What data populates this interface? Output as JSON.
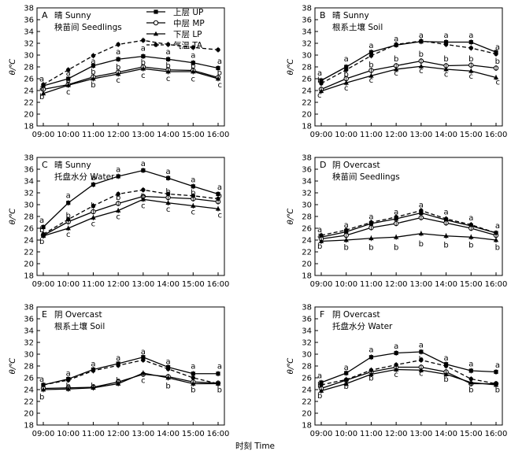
{
  "figure": {
    "ylabel": "θ/℃",
    "xlabel": "时刻 Time",
    "x_ticks": [
      "09:00",
      "10:00",
      "11:00",
      "12:00",
      "13:00",
      "14:00",
      "15:00",
      "16:00"
    ],
    "y_ticks": [
      18,
      20,
      22,
      24,
      26,
      28,
      30,
      32,
      34,
      36,
      38
    ],
    "legend": [
      {
        "key": "UP",
        "label": "上层 UP",
        "marker": "square-filled",
        "line": "solid"
      },
      {
        "key": "MP",
        "label": "中层 MP",
        "marker": "circle-open",
        "line": "solid"
      },
      {
        "key": "LP",
        "label": "下层 LP",
        "marker": "triangle-filled",
        "line": "solid"
      },
      {
        "key": "TA",
        "label": "气温 TA",
        "marker": "circle-filled",
        "line": "dashed"
      }
    ]
  },
  "chart_data": [
    {
      "type": "line",
      "panel": "A",
      "title_line1": "晴 Sunny",
      "title_line2": "秧苗间 Seedlings",
      "x": [
        "09:00",
        "10:00",
        "11:00",
        "12:00",
        "13:00",
        "14:00",
        "15:00",
        "16:00"
      ],
      "ylim": [
        18,
        38
      ],
      "series": [
        {
          "name": "上层 UP",
          "key": "UP",
          "values": [
            24.8,
            26.0,
            28.2,
            29.3,
            29.8,
            29.3,
            28.7,
            27.8
          ]
        },
        {
          "name": "中层 MP",
          "key": "MP",
          "values": [
            24.2,
            25.0,
            26.3,
            27.1,
            28.0,
            27.5,
            27.4,
            26.2
          ]
        },
        {
          "name": "下层 LP",
          "key": "LP",
          "values": [
            23.5,
            24.9,
            26.0,
            26.8,
            27.7,
            27.2,
            27.2,
            26.0
          ]
        },
        {
          "name": "气温 TA",
          "key": "TA",
          "values": [
            25.0,
            27.5,
            29.9,
            31.8,
            32.5,
            31.8,
            31.3,
            30.9
          ]
        }
      ],
      "annotations": [
        {
          "x": "09:00",
          "y": 26.0,
          "text": "a"
        },
        {
          "x": "09:00",
          "y": 24.5,
          "text": "a"
        },
        {
          "x": "09:00",
          "y": 23.0,
          "text": "b"
        },
        {
          "x": "10:00",
          "y": 27.0,
          "text": "a"
        },
        {
          "x": "10:00",
          "y": 25.8,
          "text": "b"
        },
        {
          "x": "10:00",
          "y": 23.8,
          "text": "c"
        },
        {
          "x": "11:00",
          "y": 29.0,
          "text": "a"
        },
        {
          "x": "11:00",
          "y": 27.2,
          "text": "b"
        },
        {
          "x": "11:00",
          "y": 25.0,
          "text": "b"
        },
        {
          "x": "12:00",
          "y": 30.6,
          "text": "a"
        },
        {
          "x": "12:00",
          "y": 28.0,
          "text": "b"
        },
        {
          "x": "12:00",
          "y": 25.8,
          "text": "c"
        },
        {
          "x": "13:00",
          "y": 31.2,
          "text": "a"
        },
        {
          "x": "13:00",
          "y": 28.8,
          "text": "b"
        },
        {
          "x": "13:00",
          "y": 26.6,
          "text": "c"
        },
        {
          "x": "14:00",
          "y": 30.6,
          "text": "a"
        },
        {
          "x": "14:00",
          "y": 28.3,
          "text": "b"
        },
        {
          "x": "14:00",
          "y": 26.1,
          "text": "c"
        },
        {
          "x": "15:00",
          "y": 30.0,
          "text": "a"
        },
        {
          "x": "15:00",
          "y": 28.2,
          "text": "b"
        },
        {
          "x": "15:00",
          "y": 26.0,
          "text": "c"
        },
        {
          "x": "16:00",
          "y": 29.0,
          "text": "a"
        },
        {
          "x": "16:00",
          "y": 27.1,
          "text": "b"
        },
        {
          "x": "16:00",
          "y": 25.0,
          "text": "c"
        }
      ]
    },
    {
      "type": "line",
      "panel": "B",
      "title_line1": "晴 Sunny",
      "title_line2": "根系土壤 Soil",
      "x": [
        "09:00",
        "10:00",
        "11:00",
        "12:00",
        "13:00",
        "14:00",
        "15:00",
        "16:00"
      ],
      "ylim": [
        18,
        38
      ],
      "series": [
        {
          "name": "上层 UP",
          "key": "UP",
          "values": [
            25.7,
            28.0,
            30.5,
            31.7,
            32.3,
            32.2,
            32.2,
            30.5
          ]
        },
        {
          "name": "中层 MP",
          "key": "MP",
          "values": [
            24.2,
            26.0,
            27.4,
            28.2,
            29.0,
            28.2,
            28.3,
            27.8
          ]
        },
        {
          "name": "下层 LP",
          "key": "LP",
          "values": [
            23.9,
            25.3,
            26.5,
            27.6,
            28.1,
            27.6,
            27.3,
            26.2
          ]
        },
        {
          "name": "气温 TA",
          "key": "TA",
          "values": [
            25.2,
            27.5,
            29.9,
            31.8,
            32.4,
            31.8,
            31.2,
            30.2
          ]
        }
      ],
      "annotations": [
        {
          "x": "09:00",
          "y": 27.0,
          "text": "a"
        },
        {
          "x": "09:00",
          "y": 25.8,
          "text": "b"
        },
        {
          "x": "09:00",
          "y": 23.3,
          "text": "c"
        },
        {
          "x": "10:00",
          "y": 29.4,
          "text": "a"
        },
        {
          "x": "10:00",
          "y": 26.8,
          "text": "b"
        },
        {
          "x": "10:00",
          "y": 24.5,
          "text": "c"
        },
        {
          "x": "11:00",
          "y": 31.7,
          "text": "a"
        },
        {
          "x": "11:00",
          "y": 28.4,
          "text": "b"
        },
        {
          "x": "11:00",
          "y": 25.8,
          "text": "c"
        },
        {
          "x": "12:00",
          "y": 32.8,
          "text": "a"
        },
        {
          "x": "12:00",
          "y": 29.4,
          "text": "b"
        },
        {
          "x": "12:00",
          "y": 27.0,
          "text": "c"
        },
        {
          "x": "13:00",
          "y": 33.4,
          "text": "a"
        },
        {
          "x": "13:00",
          "y": 30.2,
          "text": "b"
        },
        {
          "x": "13:00",
          "y": 27.4,
          "text": "c"
        },
        {
          "x": "14:00",
          "y": 33.4,
          "text": "a"
        },
        {
          "x": "14:00",
          "y": 29.4,
          "text": "b"
        },
        {
          "x": "14:00",
          "y": 26.8,
          "text": "c"
        },
        {
          "x": "15:00",
          "y": 33.4,
          "text": "a"
        },
        {
          "x": "15:00",
          "y": 29.4,
          "text": "b"
        },
        {
          "x": "15:00",
          "y": 26.5,
          "text": "c"
        },
        {
          "x": "16:00",
          "y": 31.4,
          "text": "a"
        },
        {
          "x": "16:00",
          "y": 29.0,
          "text": "b"
        },
        {
          "x": "16:00",
          "y": 25.5,
          "text": "c"
        }
      ]
    },
    {
      "type": "line",
      "panel": "C",
      "title_line1": "晴 Sunny",
      "title_line2": "托盘水分 Water",
      "x": [
        "09:00",
        "10:00",
        "11:00",
        "12:00",
        "13:00",
        "14:00",
        "15:00",
        "16:00"
      ],
      "ylim": [
        18,
        38
      ],
      "series": [
        {
          "name": "上层 UP",
          "key": "UP",
          "values": [
            26.2,
            30.3,
            33.4,
            34.8,
            35.8,
            34.5,
            33.1,
            31.8
          ]
        },
        {
          "name": "中层 MP",
          "key": "MP",
          "values": [
            24.8,
            27.1,
            28.8,
            30.2,
            31.4,
            31.2,
            31.0,
            30.5
          ]
        },
        {
          "name": "下层 LP",
          "key": "LP",
          "values": [
            24.7,
            26.0,
            27.8,
            29.0,
            30.9,
            30.3,
            29.8,
            29.3
          ]
        },
        {
          "name": "气温 TA",
          "key": "TA",
          "values": [
            25.0,
            27.5,
            29.8,
            31.8,
            32.5,
            31.8,
            31.5,
            31.0
          ]
        }
      ],
      "annotations": [
        {
          "x": "09:00",
          "y": 27.4,
          "text": "a"
        },
        {
          "x": "09:00",
          "y": 25.8,
          "text": "b"
        },
        {
          "x": "09:00",
          "y": 23.8,
          "text": "b"
        },
        {
          "x": "10:00",
          "y": 31.6,
          "text": "a"
        },
        {
          "x": "10:00",
          "y": 28.2,
          "text": "b"
        },
        {
          "x": "10:00",
          "y": 25.0,
          "text": "c"
        },
        {
          "x": "11:00",
          "y": 34.6,
          "text": "a"
        },
        {
          "x": "11:00",
          "y": 29.9,
          "text": "b"
        },
        {
          "x": "11:00",
          "y": 26.8,
          "text": "c"
        },
        {
          "x": "12:00",
          "y": 36.0,
          "text": "a"
        },
        {
          "x": "12:00",
          "y": 31.3,
          "text": "b"
        },
        {
          "x": "12:00",
          "y": 28.0,
          "text": "c"
        },
        {
          "x": "13:00",
          "y": 37.0,
          "text": "a"
        },
        {
          "x": "13:00",
          "y": 31.4,
          "text": "b"
        },
        {
          "x": "13:00",
          "y": 29.9,
          "text": "c"
        },
        {
          "x": "14:00",
          "y": 35.7,
          "text": "a"
        },
        {
          "x": "14:00",
          "y": 32.3,
          "text": "b"
        },
        {
          "x": "14:00",
          "y": 29.3,
          "text": "c"
        },
        {
          "x": "15:00",
          "y": 34.3,
          "text": "a"
        },
        {
          "x": "15:00",
          "y": 32.1,
          "text": "b"
        },
        {
          "x": "15:00",
          "y": 28.8,
          "text": "c"
        },
        {
          "x": "16:00",
          "y": 33.0,
          "text": "a"
        },
        {
          "x": "16:00",
          "y": 31.6,
          "text": "b"
        },
        {
          "x": "16:00",
          "y": 28.3,
          "text": "c"
        }
      ]
    },
    {
      "type": "line",
      "panel": "D",
      "title_line1": "阴 Overcast",
      "title_line2": "秧苗间 Seedlings",
      "x": [
        "09:00",
        "10:00",
        "11:00",
        "12:00",
        "13:00",
        "14:00",
        "15:00",
        "16:00"
      ],
      "ylim": [
        18,
        38
      ],
      "series": [
        {
          "name": "上层 UP",
          "key": "UP",
          "values": [
            24.5,
            25.4,
            26.8,
            27.6,
            28.6,
            27.4,
            26.4,
            25.2
          ]
        },
        {
          "name": "中层 MP",
          "key": "MP",
          "values": [
            24.2,
            24.8,
            26.1,
            26.8,
            27.8,
            26.9,
            26.0,
            24.8
          ]
        },
        {
          "name": "下层 LP",
          "key": "LP",
          "values": [
            23.8,
            24.0,
            24.3,
            24.5,
            25.1,
            24.7,
            24.5,
            24.0
          ]
        },
        {
          "name": "气温 TA",
          "key": "TA",
          "values": [
            24.8,
            25.7,
            27.0,
            27.9,
            29.0,
            27.6,
            26.6,
            25.2
          ]
        }
      ],
      "annotations": [
        {
          "x": "09:00",
          "y": 25.8,
          "text": "a"
        },
        {
          "x": "09:00",
          "y": 24.8,
          "text": "a"
        },
        {
          "x": "09:00",
          "y": 23.0,
          "text": "b"
        },
        {
          "x": "10:00",
          "y": 26.6,
          "text": "a"
        },
        {
          "x": "10:00",
          "y": 22.8,
          "text": "b"
        },
        {
          "x": "11:00",
          "y": 28.0,
          "text": "a"
        },
        {
          "x": "11:00",
          "y": 22.8,
          "text": "b"
        },
        {
          "x": "12:00",
          "y": 28.8,
          "text": "a"
        },
        {
          "x": "12:00",
          "y": 22.8,
          "text": "b"
        },
        {
          "x": "13:00",
          "y": 30.0,
          "text": "a"
        },
        {
          "x": "13:00",
          "y": 23.4,
          "text": "b"
        },
        {
          "x": "14:00",
          "y": 28.8,
          "text": "a"
        },
        {
          "x": "14:00",
          "y": 23.2,
          "text": "b"
        },
        {
          "x": "15:00",
          "y": 27.8,
          "text": "a"
        },
        {
          "x": "15:00",
          "y": 23.2,
          "text": "b"
        },
        {
          "x": "16:00",
          "y": 26.5,
          "text": "a"
        },
        {
          "x": "16:00",
          "y": 22.8,
          "text": "b"
        }
      ]
    },
    {
      "type": "line",
      "panel": "E",
      "title_line1": "阴 Overcast",
      "title_line2": "根系土壤 Soil",
      "x": [
        "09:00",
        "10:00",
        "11:00",
        "12:00",
        "13:00",
        "14:00",
        "15:00",
        "16:00"
      ],
      "ylim": [
        18,
        38
      ],
      "series": [
        {
          "name": "上层 UP",
          "key": "UP",
          "values": [
            24.8,
            25.8,
            27.4,
            28.4,
            29.5,
            27.8,
            26.7,
            26.7
          ]
        },
        {
          "name": "中层 MP",
          "key": "MP",
          "values": [
            24.2,
            24.3,
            24.4,
            25.3,
            26.6,
            26.2,
            25.3,
            25.1
          ]
        },
        {
          "name": "下层 LP",
          "key": "LP",
          "values": [
            24.0,
            24.1,
            24.3,
            25.0,
            26.8,
            26.0,
            25.0,
            25.0
          ]
        },
        {
          "name": "气温 TA",
          "key": "TA",
          "values": [
            24.8,
            25.6,
            27.2,
            28.1,
            29.0,
            27.5,
            26.0,
            25.0
          ]
        }
      ],
      "annotations": [
        {
          "x": "09:00",
          "y": 25.8,
          "text": "a"
        },
        {
          "x": "09:00",
          "y": 22.8,
          "text": "b"
        },
        {
          "x": "10:00",
          "y": 26.8,
          "text": "a"
        },
        {
          "x": "10:00",
          "y": 24.7,
          "text": "b"
        },
        {
          "x": "11:00",
          "y": 28.4,
          "text": "a"
        },
        {
          "x": "11:00",
          "y": 24.7,
          "text": "b"
        },
        {
          "x": "12:00",
          "y": 29.4,
          "text": "a"
        },
        {
          "x": "12:00",
          "y": 25.6,
          "text": "b"
        },
        {
          "x": "13:00",
          "y": 30.5,
          "text": "a"
        },
        {
          "x": "13:00",
          "y": 25.6,
          "text": "c"
        },
        {
          "x": "14:00",
          "y": 28.8,
          "text": "a"
        },
        {
          "x": "14:00",
          "y": 24.7,
          "text": "b"
        },
        {
          "x": "15:00",
          "y": 28.0,
          "text": "a"
        },
        {
          "x": "15:00",
          "y": 24.0,
          "text": "b"
        },
        {
          "x": "16:00",
          "y": 28.0,
          "text": "a"
        },
        {
          "x": "16:00",
          "y": 24.0,
          "text": "b"
        }
      ]
    },
    {
      "type": "line",
      "panel": "F",
      "title_line1": "阴 Overcast",
      "title_line2": "托盘水分 Water",
      "x": [
        "09:00",
        "10:00",
        "11:00",
        "12:00",
        "13:00",
        "14:00",
        "15:00",
        "16:00"
      ],
      "ylim": [
        18,
        38
      ],
      "series": [
        {
          "name": "上层 UP",
          "key": "UP",
          "values": [
            25.2,
            26.8,
            29.5,
            30.2,
            30.4,
            28.3,
            27.2,
            27.0
          ]
        },
        {
          "name": "中层 MP",
          "key": "MP",
          "values": [
            24.2,
            25.6,
            27.0,
            27.8,
            27.8,
            27.0,
            25.0,
            25.0
          ]
        },
        {
          "name": "下层 LP",
          "key": "LP",
          "values": [
            23.8,
            25.0,
            26.6,
            27.4,
            27.3,
            26.6,
            25.2,
            24.8
          ]
        },
        {
          "name": "气温 TA",
          "key": "TA",
          "values": [
            24.8,
            25.7,
            27.3,
            28.2,
            29.0,
            28.0,
            25.8,
            25.0
          ]
        }
      ],
      "annotations": [
        {
          "x": "09:00",
          "y": 26.4,
          "text": "a"
        },
        {
          "x": "09:00",
          "y": 24.8,
          "text": "b"
        },
        {
          "x": "09:00",
          "y": 23.0,
          "text": "b"
        },
        {
          "x": "10:00",
          "y": 27.8,
          "text": "a"
        },
        {
          "x": "10:00",
          "y": 24.6,
          "text": "b"
        },
        {
          "x": "11:00",
          "y": 30.8,
          "text": "a"
        },
        {
          "x": "11:00",
          "y": 26.0,
          "text": "b"
        },
        {
          "x": "12:00",
          "y": 31.4,
          "text": "a"
        },
        {
          "x": "12:00",
          "y": 26.6,
          "text": "c"
        },
        {
          "x": "13:00",
          "y": 31.6,
          "text": "a"
        },
        {
          "x": "13:00",
          "y": 29.2,
          "text": "b"
        },
        {
          "x": "13:00",
          "y": 26.8,
          "text": "c"
        },
        {
          "x": "14:00",
          "y": 29.4,
          "text": "a"
        },
        {
          "x": "14:00",
          "y": 25.8,
          "text": "b"
        },
        {
          "x": "15:00",
          "y": 28.4,
          "text": "a"
        },
        {
          "x": "15:00",
          "y": 24.0,
          "text": "b"
        },
        {
          "x": "16:00",
          "y": 28.2,
          "text": "a"
        },
        {
          "x": "16:00",
          "y": 24.0,
          "text": "b"
        }
      ]
    }
  ]
}
